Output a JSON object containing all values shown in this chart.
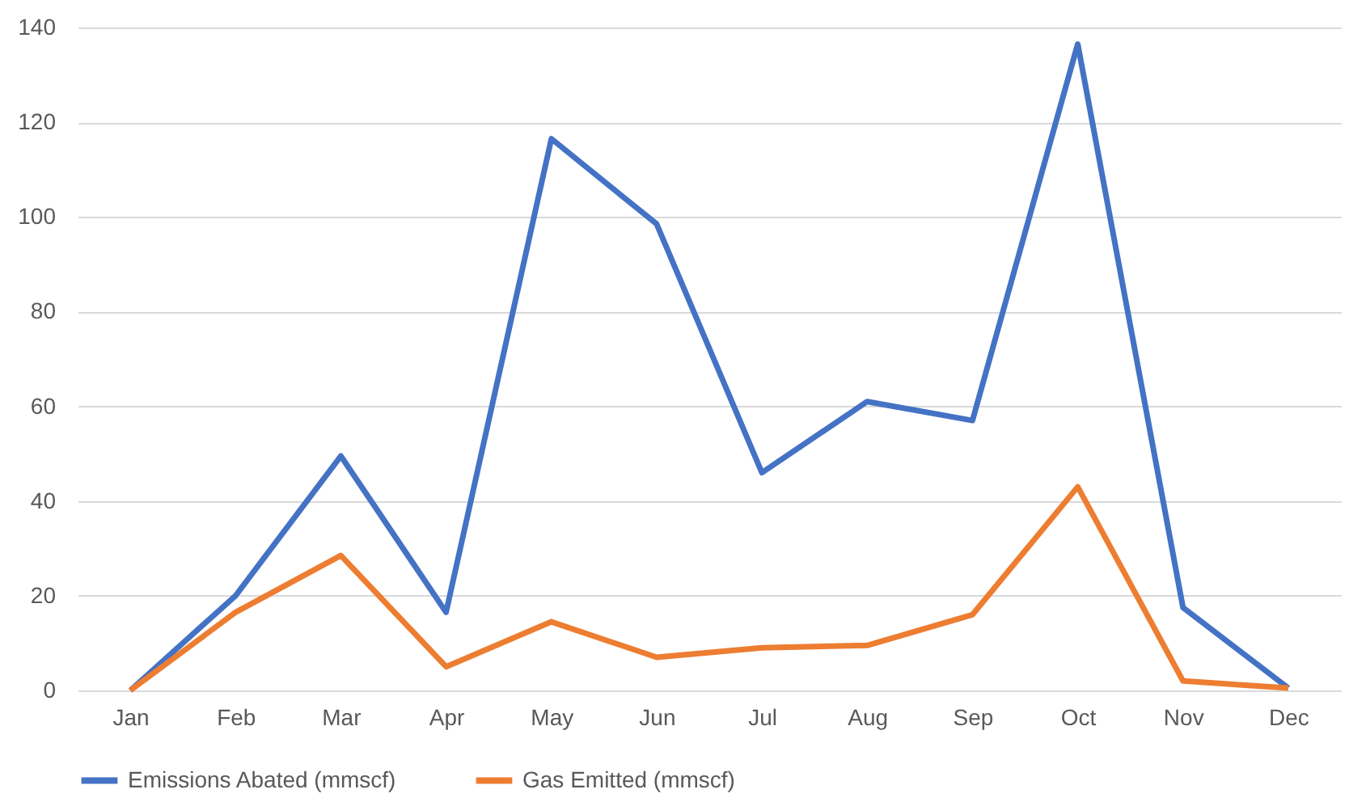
{
  "chart_data": {
    "type": "line",
    "categories": [
      "Jan",
      "Feb",
      "Mar",
      "Apr",
      "May",
      "Jun",
      "Jul",
      "Aug",
      "Sep",
      "Oct",
      "Nov",
      "Dec"
    ],
    "series": [
      {
        "name": "Emissions Abated (mmscf)",
        "color": "#4472c4",
        "values": [
          0,
          20,
          49.5,
          16.5,
          116.5,
          98.5,
          46,
          61,
          57,
          136.5,
          17.5,
          0.5
        ]
      },
      {
        "name": "Gas Emitted (mmscf)",
        "color": "#ed7d31",
        "values": [
          0,
          16.5,
          28.5,
          5,
          14.5,
          7,
          9,
          9.5,
          16,
          43,
          2,
          0.5
        ]
      }
    ],
    "ylim": [
      0,
      140
    ],
    "yticks": [
      0,
      20,
      40,
      60,
      80,
      100,
      120,
      140
    ],
    "grid": "y",
    "legend": "bottom",
    "marker": "none",
    "line_style": "solid"
  }
}
